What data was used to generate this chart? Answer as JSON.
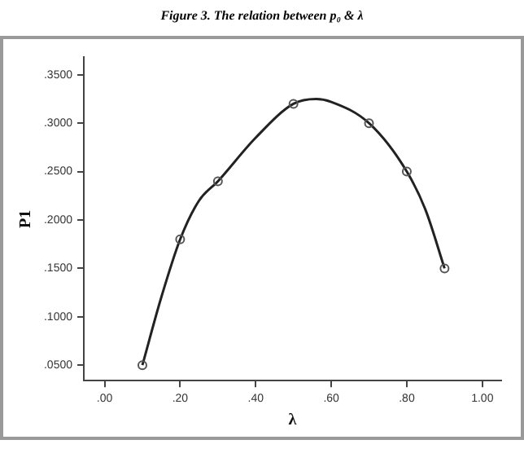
{
  "chart_data": {
    "type": "scatter",
    "title": "Figure 3. The relation between  p₀  &  λ",
    "xlabel": "λ",
    "ylabel": "P1",
    "xlim": [
      -0.055,
      1.05
    ],
    "ylim": [
      0.034,
      0.368
    ],
    "xticks": [
      {
        "value": 0,
        "label": ".00"
      },
      {
        "value": 0.2,
        "label": ".20"
      },
      {
        "value": 0.4,
        "label": ".40"
      },
      {
        "value": 0.6,
        "label": ".60"
      },
      {
        "value": 0.8,
        "label": ".80"
      },
      {
        "value": 1,
        "label": "1.00"
      }
    ],
    "yticks": [
      {
        "value": 0.05,
        "label": ".0500"
      },
      {
        "value": 0.1,
        "label": ".1000"
      },
      {
        "value": 0.15,
        "label": ".1500"
      },
      {
        "value": 0.2,
        "label": ".2000"
      },
      {
        "value": 0.25,
        "label": ".2500"
      },
      {
        "value": 0.3,
        "label": ".3000"
      },
      {
        "value": 0.35,
        "label": ".3500"
      }
    ],
    "x": [
      0.1,
      0.2,
      0.3,
      0.5,
      0.7,
      0.8,
      0.9
    ],
    "series": [
      {
        "color": "#555555",
        "marker": "circle",
        "values": [
          0.05,
          0.18,
          0.24,
          0.32,
          0.3,
          0.25,
          0.15
        ]
      },
      {
        "type": "line",
        "color": "#222222",
        "marker": "none",
        "x": [
          0.1,
          0.15,
          0.2,
          0.25,
          0.3,
          0.4,
          0.5,
          0.56,
          0.6,
          0.7,
          0.8,
          0.85,
          0.9
        ],
        "values": [
          0.05,
          0.12,
          0.18,
          0.22,
          0.24,
          0.285,
          0.32,
          0.325,
          0.322,
          0.3,
          0.25,
          0.21,
          0.15
        ]
      }
    ],
    "grid": false,
    "legend": false
  }
}
